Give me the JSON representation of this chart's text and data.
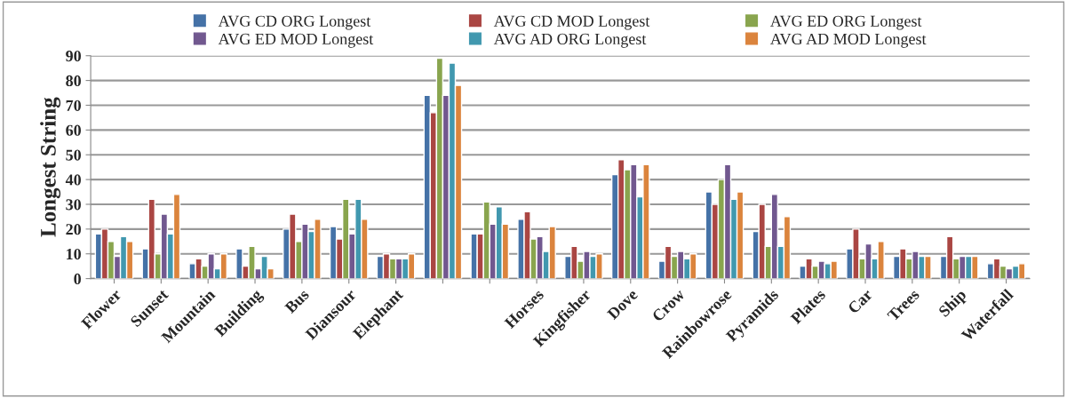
{
  "chart_data": {
    "type": "bar",
    "ylabel": "Longest String",
    "categories": [
      "Flower",
      "Sunset",
      "Mountain",
      "Building",
      "Bus",
      "Diansour",
      "Elephant",
      null,
      null,
      "Horses",
      "Kingfisher",
      "Dove",
      "Crow",
      "Rainbowrose",
      "Pyramids",
      "Plates",
      "Car",
      "Trees",
      "Ship",
      "Waterfall"
    ],
    "series": [
      {
        "name": "AVG CD ORG Longest",
        "color": "#4572a7",
        "values": [
          18,
          12,
          6,
          12,
          20,
          21,
          9,
          74,
          18,
          24,
          9,
          42,
          7,
          35,
          19,
          5,
          12,
          9,
          9,
          6
        ]
      },
      {
        "name": "AVG CD MOD Longest",
        "color": "#aa4643",
        "values": [
          20,
          32,
          8,
          5,
          26,
          16,
          10,
          67,
          18,
          27,
          13,
          48,
          13,
          30,
          30,
          8,
          20,
          12,
          17,
          8
        ]
      },
      {
        "name": "AVG ED ORG Longest",
        "color": "#89a54e",
        "values": [
          15,
          10,
          5,
          13,
          15,
          32,
          8,
          89,
          31,
          16,
          7,
          44,
          9,
          40,
          13,
          5,
          8,
          8,
          8,
          5
        ]
      },
      {
        "name": "AVG ED MOD Longest",
        "color": "#71588f",
        "values": [
          9,
          26,
          10,
          4,
          22,
          18,
          8,
          74,
          22,
          17,
          11,
          46,
          11,
          46,
          34,
          7,
          14,
          11,
          9,
          4
        ]
      },
      {
        "name": "AVG AD ORG Longest",
        "color": "#4198af",
        "values": [
          17,
          18,
          4,
          9,
          19,
          32,
          8,
          87,
          29,
          11,
          9,
          33,
          8,
          32,
          13,
          6,
          8,
          9,
          9,
          5
        ]
      },
      {
        "name": "AVG AD MOD Longest",
        "color": "#db843d",
        "values": [
          15,
          34,
          10,
          4,
          24,
          24,
          10,
          78,
          22,
          21,
          10,
          46,
          10,
          35,
          25,
          7,
          15,
          9,
          9,
          6
        ]
      }
    ],
    "ylim": [
      0,
      90
    ],
    "yticks": [
      0,
      10,
      20,
      30,
      40,
      50,
      60,
      70,
      80,
      90
    ],
    "grid": "y",
    "legend": "top"
  }
}
